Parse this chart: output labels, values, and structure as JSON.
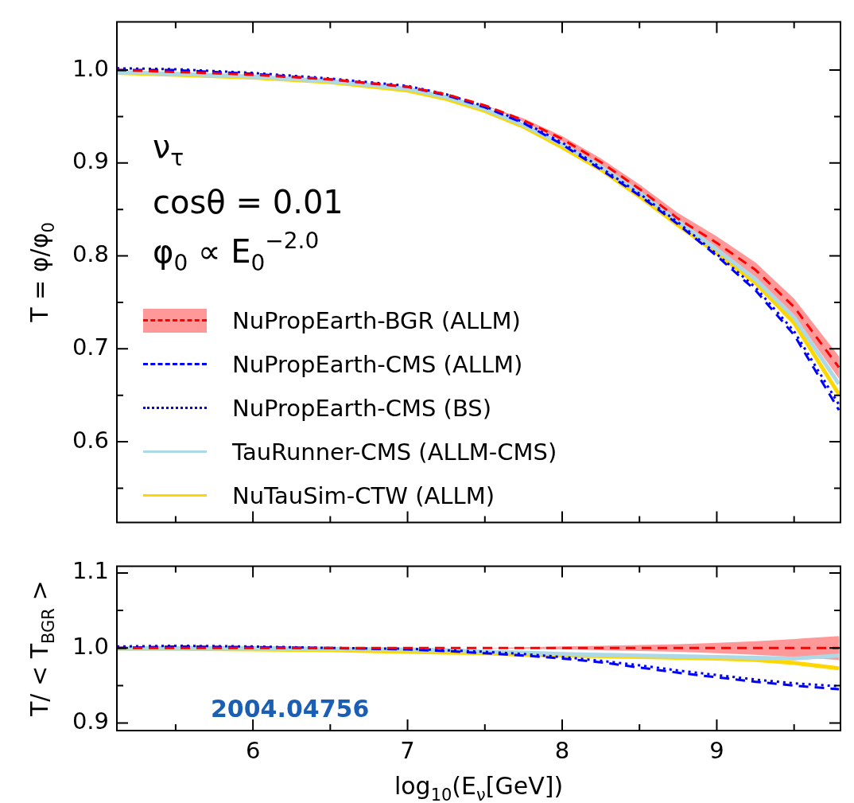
{
  "chart_data": [
    {
      "type": "line",
      "ylabel": "T = φ/φ$_{0}$",
      "x": [
        5.12,
        5.5,
        6,
        6.5,
        7,
        7.25,
        7.5,
        7.75,
        8,
        8.25,
        8.5,
        8.75,
        9,
        9.25,
        9.5,
        9.79
      ],
      "xlim": [
        5.12,
        9.8
      ],
      "ylim": [
        0.513,
        1.052
      ],
      "xticks": [
        {
          "value": 5.5,
          "label": null
        },
        6,
        {
          "value": 6.5,
          "label": null
        },
        7,
        {
          "value": 7.5,
          "label": null
        },
        8,
        {
          "value": 8.5,
          "label": null
        },
        9,
        {
          "value": 9.5,
          "label": null
        }
      ],
      "yticks": [
        {
          "value": 0.55,
          "label": null
        },
        {
          "value": 0.6,
          "label": "0.6"
        },
        {
          "value": 0.65,
          "label": null
        },
        {
          "value": 0.7,
          "label": "0.7"
        },
        {
          "value": 0.75,
          "label": null
        },
        {
          "value": 0.8,
          "label": "0.8"
        },
        {
          "value": 0.85,
          "label": null
        },
        {
          "value": 0.9,
          "label": "0.9"
        },
        {
          "value": 0.95,
          "label": null
        },
        {
          "value": 1.0,
          "label": "1.0"
        }
      ],
      "tick_labels": "y",
      "legend": "center left",
      "annotations": [
        "ν$_{τ}$",
        "cosθ = 0.01",
        "φ$_{0}$ ∝ E$_{0}$$^{−2.0}$"
      ],
      "series": [
        {
          "name": "NuPropEarth-BGR (ALLM)",
          "color": "#ff0000",
          "line_style": "dashed",
          "values": [
            1.0,
            0.998,
            0.995,
            0.99,
            0.982,
            0.974,
            0.962,
            0.946,
            0.926,
            0.901,
            0.872,
            0.84,
            0.814,
            0.785,
            0.745,
            0.68
          ],
          "lower": [
            1.0,
            0.998,
            0.995,
            0.99,
            0.982,
            0.974,
            0.962,
            0.944,
            0.923,
            0.897,
            0.867,
            0.834,
            0.807,
            0.777,
            0.736,
            0.668
          ],
          "upper": [
            1.0,
            0.998,
            0.995,
            0.99,
            0.982,
            0.974,
            0.962,
            0.948,
            0.929,
            0.905,
            0.877,
            0.846,
            0.821,
            0.793,
            0.754,
            0.692
          ]
        },
        {
          "name": "NuPropEarth-CMS (ALLM)",
          "color": "#0000ff",
          "line_style": "dashed",
          "values": [
            1.0,
            1.0,
            0.996,
            0.99,
            0.982,
            0.973,
            0.96,
            0.943,
            0.92,
            0.893,
            0.865,
            0.834,
            0.8,
            0.763,
            0.715,
            0.634
          ]
        },
        {
          "name": "NuPropEarth-CMS (BS)",
          "color": "#0000ff",
          "line_style": "dotted",
          "values": [
            1.002,
            1.001,
            0.997,
            0.991,
            0.983,
            0.974,
            0.961,
            0.944,
            0.922,
            0.895,
            0.867,
            0.836,
            0.802,
            0.766,
            0.719,
            0.64
          ]
        },
        {
          "name": "TauRunner-CMS (ALLM-CMS)",
          "color": "#add8e6",
          "line_style": "solid",
          "values": [
            0.998,
            0.996,
            0.993,
            0.988,
            0.98,
            0.971,
            0.958,
            0.941,
            0.92,
            0.896,
            0.868,
            0.837,
            0.807,
            0.775,
            0.734,
            0.662
          ]
        },
        {
          "name": "NuTauSim-CTW (ALLM)",
          "color": "#ffd700",
          "line_style": "solid",
          "values": [
            0.997,
            0.995,
            0.992,
            0.987,
            0.978,
            0.969,
            0.956,
            0.939,
            0.917,
            0.893,
            0.864,
            0.833,
            0.803,
            0.771,
            0.728,
            0.651
          ]
        }
      ]
    },
    {
      "type": "line",
      "ylabel": "T/ < T$_{BGR}$ >",
      "xlabel": "log$_{10}$(E$_{ν}$[GeV])",
      "x": [
        5.12,
        5.5,
        6,
        6.5,
        7,
        7.25,
        7.5,
        7.75,
        8,
        8.25,
        8.5,
        8.75,
        9,
        9.25,
        9.5,
        9.79
      ],
      "xlim": [
        5.12,
        9.8
      ],
      "ylim": [
        0.89,
        1.109
      ],
      "xticks": [
        {
          "value": 5.5,
          "label": null
        },
        6,
        {
          "value": 6.5,
          "label": null
        },
        7,
        {
          "value": 7.5,
          "label": null
        },
        8,
        {
          "value": 8.5,
          "label": null
        },
        9,
        {
          "value": 9.5,
          "label": null
        }
      ],
      "yticks": [
        {
          "value": 0.9,
          "label": "0.9"
        },
        {
          "value": 0.95,
          "label": null
        },
        {
          "value": 1.0,
          "label": "1.0"
        },
        {
          "value": 1.05,
          "label": null
        },
        {
          "value": 1.1,
          "label": "1.1"
        }
      ],
      "annotations": [
        "2004.04756"
      ],
      "series": [
        {
          "color": "#ff0000",
          "line_style": "dashed",
          "values": [
            1.0,
            1.0,
            1.0,
            1.0,
            1.0,
            1.0,
            1.0,
            1.0,
            1.0,
            1.0,
            1.0,
            1.0,
            1.0,
            1.0,
            1.0,
            1.0
          ],
          "lower": [
            1.0,
            1.0,
            1.0,
            1.0,
            1.0,
            1.0,
            1.0,
            0.999,
            0.998,
            0.997,
            0.996,
            0.995,
            0.993,
            0.991,
            0.988,
            0.984
          ],
          "upper": [
            1.0,
            1.0,
            1.0,
            1.0,
            1.0,
            1.0,
            1.0,
            1.001,
            1.002,
            1.003,
            1.004,
            1.005,
            1.007,
            1.009,
            1.012,
            1.016
          ]
        },
        {
          "color": "#0000ff",
          "line_style": "dashed",
          "values": [
            1.0,
            1.002,
            1.001,
            1.0,
            0.998,
            0.996,
            0.993,
            0.99,
            0.986,
            0.981,
            0.974,
            0.967,
            0.961,
            0.955,
            0.95,
            0.945
          ]
        },
        {
          "color": "#0000ff",
          "line_style": "dotted",
          "values": [
            1.002,
            1.003,
            1.002,
            1.0,
            0.999,
            0.997,
            0.995,
            0.992,
            0.988,
            0.983,
            0.977,
            0.97,
            0.964,
            0.958,
            0.953,
            0.949
          ]
        },
        {
          "color": "#add8e6",
          "line_style": "solid",
          "values": [
            1.0,
            1.0,
            1.0,
            0.999,
            0.998,
            0.997,
            0.995,
            0.994,
            0.992,
            0.991,
            0.99,
            0.989,
            0.988,
            0.987,
            0.986,
            0.99
          ]
        },
        {
          "color": "#ffd700",
          "line_style": "solid",
          "values": [
            0.999,
            0.999,
            0.998,
            0.997,
            0.995,
            0.994,
            0.993,
            0.991,
            0.99,
            0.989,
            0.988,
            0.987,
            0.986,
            0.984,
            0.98,
            0.973
          ]
        }
      ]
    }
  ]
}
